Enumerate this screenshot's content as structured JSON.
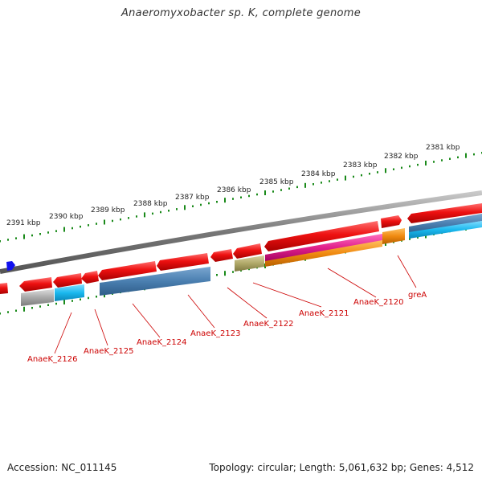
{
  "title": "Anaeromyxobacter sp. K, complete genome",
  "scale_labels": [
    "2391 kbp",
    "2390 kbp",
    "2389 kbp",
    "2388 kbp",
    "2387 kbp",
    "2386 kbp",
    "2385 kbp",
    "2384 kbp",
    "2383 kbp",
    "2382 kbp",
    "2381 kbp"
  ],
  "gene_labels": [
    "AnaeK_2126",
    "AnaeK_2125",
    "AnaeK_2124",
    "AnaeK_2123",
    "AnaeK_2122",
    "AnaeK_2121",
    "AnaeK_2120",
    "greA"
  ],
  "footer": {
    "accession": "Accession: NC_011145",
    "summary": "Topology: circular; Length: 5,061,632 bp; Genes: 4,512"
  },
  "colors": {
    "gene": "#ee1111",
    "backbone": "#888888",
    "ticks": "#1a8a1a",
    "label": "#cc0000",
    "steelblue": "#4a7fb0",
    "cyan": "#1ab8ee",
    "gray": "#a8a8a8",
    "olive": "#b0a868",
    "magenta": "#e0208a",
    "orange": "#f08a10",
    "marker": "#1010ee"
  }
}
